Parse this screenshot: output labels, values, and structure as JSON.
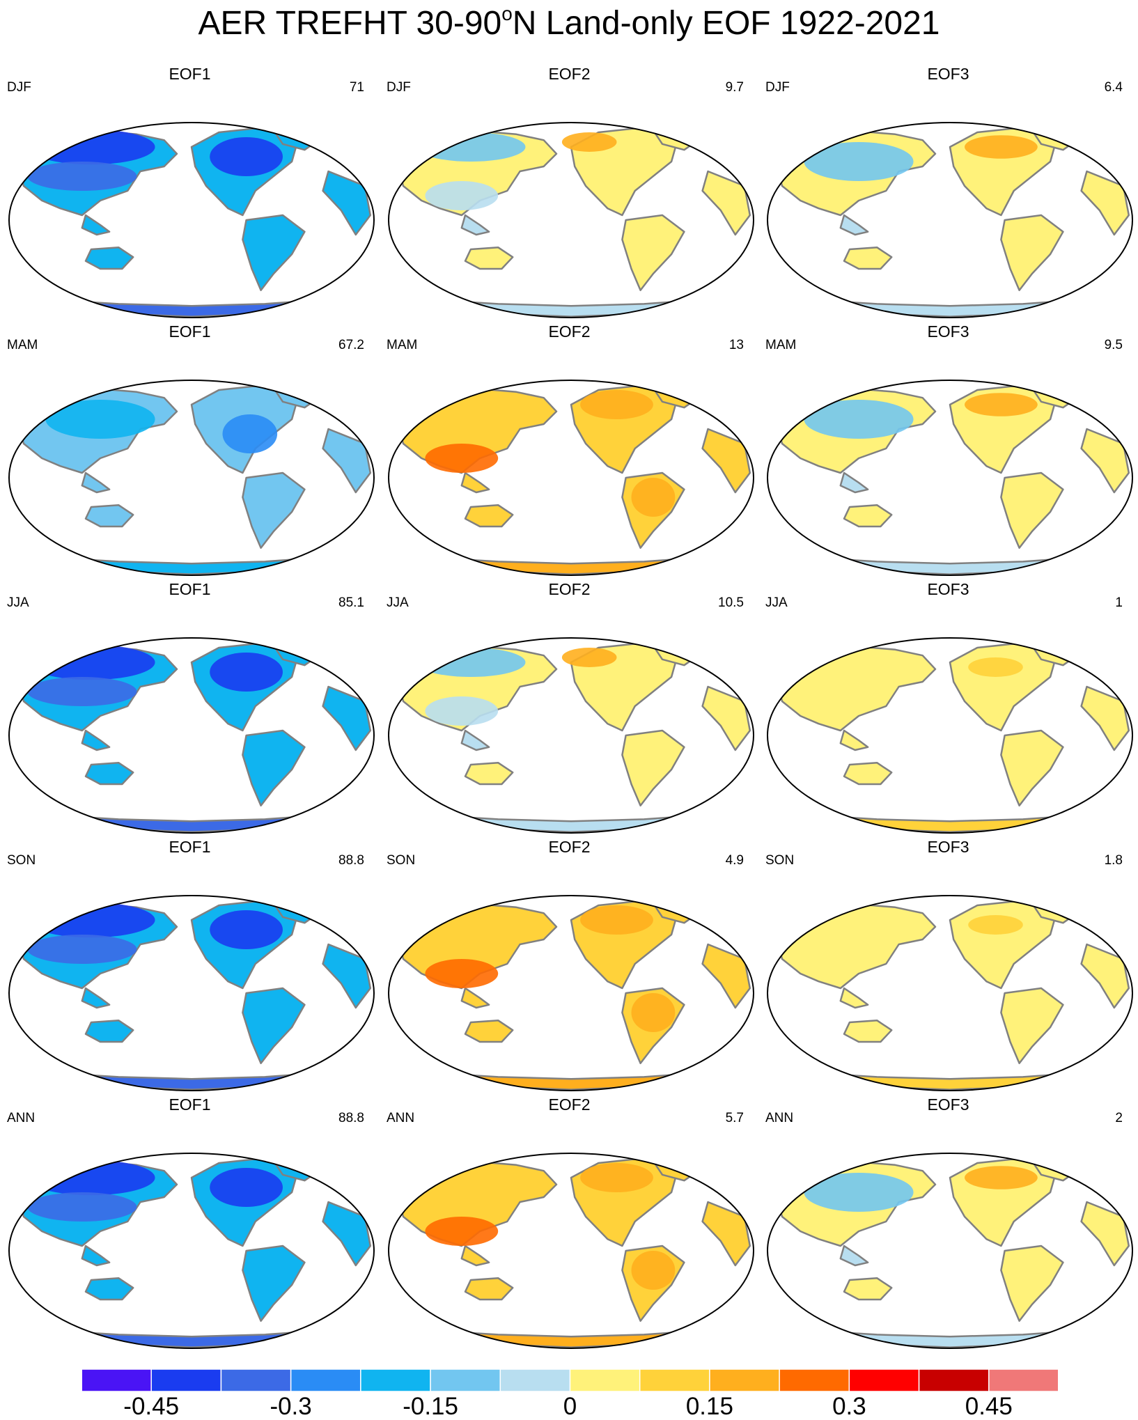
{
  "title": {
    "prefix": "AER TREFHT 30-90",
    "sup": "o",
    "suffix": "N Land-only EOF 1922-2021"
  },
  "colors": {
    "ocean": "#ffffff",
    "coastline": "#808080",
    "border": "#000000"
  },
  "panels": [
    {
      "eof": "EOF1",
      "season": "DJF",
      "variance": "71",
      "field": "cool",
      "intensity": "strong"
    },
    {
      "eof": "EOF2",
      "season": "DJF",
      "variance": "9.7",
      "field": "mixed",
      "intensity": "moderate"
    },
    {
      "eof": "EOF3",
      "season": "DJF",
      "variance": "6.4",
      "field": "mixed",
      "intensity": "weak"
    },
    {
      "eof": "EOF1",
      "season": "MAM",
      "variance": "67.2",
      "field": "cool",
      "intensity": "moderate"
    },
    {
      "eof": "EOF2",
      "season": "MAM",
      "variance": "13",
      "field": "warm",
      "intensity": "moderate"
    },
    {
      "eof": "EOF3",
      "season": "MAM",
      "variance": "9.5",
      "field": "mixed",
      "intensity": "weak"
    },
    {
      "eof": "EOF1",
      "season": "JJA",
      "variance": "85.1",
      "field": "cool",
      "intensity": "strong"
    },
    {
      "eof": "EOF2",
      "season": "JJA",
      "variance": "10.5",
      "field": "mixed",
      "intensity": "moderate"
    },
    {
      "eof": "EOF3",
      "season": "JJA",
      "variance": "1",
      "field": "warm",
      "intensity": "weak"
    },
    {
      "eof": "EOF1",
      "season": "SON",
      "variance": "88.8",
      "field": "cool",
      "intensity": "strong"
    },
    {
      "eof": "EOF2",
      "season": "SON",
      "variance": "4.9",
      "field": "warm",
      "intensity": "moderate"
    },
    {
      "eof": "EOF3",
      "season": "SON",
      "variance": "1.8",
      "field": "warm",
      "intensity": "weak"
    },
    {
      "eof": "EOF1",
      "season": "ANN",
      "variance": "88.8",
      "field": "cool",
      "intensity": "strong"
    },
    {
      "eof": "EOF2",
      "season": "ANN",
      "variance": "5.7",
      "field": "warm",
      "intensity": "moderate"
    },
    {
      "eof": "EOF3",
      "season": "ANN",
      "variance": "2",
      "field": "mixed",
      "intensity": "weak"
    }
  ],
  "colorbar": {
    "colors": [
      "#4a14f5",
      "#1a3cf0",
      "#3c6ae6",
      "#2a8cf5",
      "#10b4f0",
      "#72c6f0",
      "#b8def0",
      "#fff27a",
      "#ffd23a",
      "#ffaf1e",
      "#ff6a00",
      "#ff0000",
      "#c80000",
      "#f07878"
    ],
    "labels": [
      {
        "text": "-0.45",
        "boundary": 1
      },
      {
        "text": "-0.3",
        "boundary": 3
      },
      {
        "text": "-0.15",
        "boundary": 5
      },
      {
        "text": "0",
        "boundary": 7
      },
      {
        "text": "0.15",
        "boundary": 9
      },
      {
        "text": "0.3",
        "boundary": 11
      },
      {
        "text": "0.45",
        "boundary": 13
      }
    ]
  }
}
